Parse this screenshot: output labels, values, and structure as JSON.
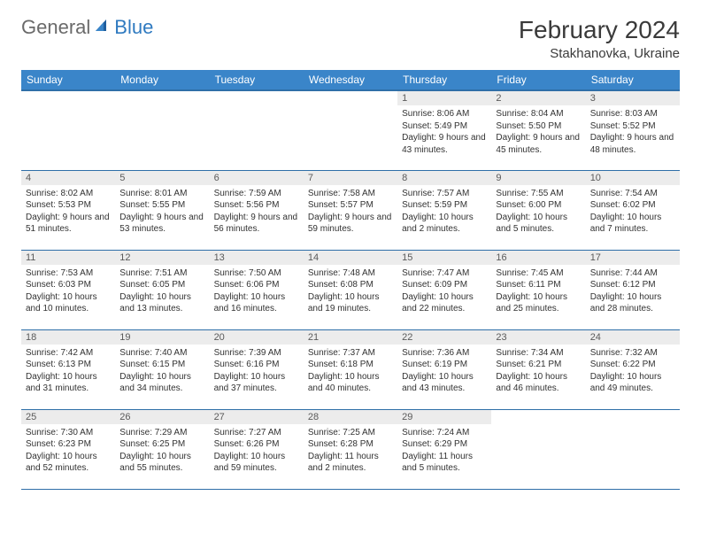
{
  "logo": {
    "general": "General",
    "blue": "Blue"
  },
  "title": "February 2024",
  "location": "Stakhanovka, Ukraine",
  "colors": {
    "header_bg": "#3a85c9",
    "header_border": "#2f6fa8",
    "daynum_bg": "#ececec",
    "text": "#323232",
    "logo_gray": "#6a6a6a",
    "logo_blue": "#2f7ac0"
  },
  "weekdays": [
    "Sunday",
    "Monday",
    "Tuesday",
    "Wednesday",
    "Thursday",
    "Friday",
    "Saturday"
  ],
  "grid": [
    [
      {
        "day": "",
        "sunrise": "",
        "sunset": "",
        "daylight": ""
      },
      {
        "day": "",
        "sunrise": "",
        "sunset": "",
        "daylight": ""
      },
      {
        "day": "",
        "sunrise": "",
        "sunset": "",
        "daylight": ""
      },
      {
        "day": "",
        "sunrise": "",
        "sunset": "",
        "daylight": ""
      },
      {
        "day": "1",
        "sunrise": "Sunrise: 8:06 AM",
        "sunset": "Sunset: 5:49 PM",
        "daylight": "Daylight: 9 hours and 43 minutes."
      },
      {
        "day": "2",
        "sunrise": "Sunrise: 8:04 AM",
        "sunset": "Sunset: 5:50 PM",
        "daylight": "Daylight: 9 hours and 45 minutes."
      },
      {
        "day": "3",
        "sunrise": "Sunrise: 8:03 AM",
        "sunset": "Sunset: 5:52 PM",
        "daylight": "Daylight: 9 hours and 48 minutes."
      }
    ],
    [
      {
        "day": "4",
        "sunrise": "Sunrise: 8:02 AM",
        "sunset": "Sunset: 5:53 PM",
        "daylight": "Daylight: 9 hours and 51 minutes."
      },
      {
        "day": "5",
        "sunrise": "Sunrise: 8:01 AM",
        "sunset": "Sunset: 5:55 PM",
        "daylight": "Daylight: 9 hours and 53 minutes."
      },
      {
        "day": "6",
        "sunrise": "Sunrise: 7:59 AM",
        "sunset": "Sunset: 5:56 PM",
        "daylight": "Daylight: 9 hours and 56 minutes."
      },
      {
        "day": "7",
        "sunrise": "Sunrise: 7:58 AM",
        "sunset": "Sunset: 5:57 PM",
        "daylight": "Daylight: 9 hours and 59 minutes."
      },
      {
        "day": "8",
        "sunrise": "Sunrise: 7:57 AM",
        "sunset": "Sunset: 5:59 PM",
        "daylight": "Daylight: 10 hours and 2 minutes."
      },
      {
        "day": "9",
        "sunrise": "Sunrise: 7:55 AM",
        "sunset": "Sunset: 6:00 PM",
        "daylight": "Daylight: 10 hours and 5 minutes."
      },
      {
        "day": "10",
        "sunrise": "Sunrise: 7:54 AM",
        "sunset": "Sunset: 6:02 PM",
        "daylight": "Daylight: 10 hours and 7 minutes."
      }
    ],
    [
      {
        "day": "11",
        "sunrise": "Sunrise: 7:53 AM",
        "sunset": "Sunset: 6:03 PM",
        "daylight": "Daylight: 10 hours and 10 minutes."
      },
      {
        "day": "12",
        "sunrise": "Sunrise: 7:51 AM",
        "sunset": "Sunset: 6:05 PM",
        "daylight": "Daylight: 10 hours and 13 minutes."
      },
      {
        "day": "13",
        "sunrise": "Sunrise: 7:50 AM",
        "sunset": "Sunset: 6:06 PM",
        "daylight": "Daylight: 10 hours and 16 minutes."
      },
      {
        "day": "14",
        "sunrise": "Sunrise: 7:48 AM",
        "sunset": "Sunset: 6:08 PM",
        "daylight": "Daylight: 10 hours and 19 minutes."
      },
      {
        "day": "15",
        "sunrise": "Sunrise: 7:47 AM",
        "sunset": "Sunset: 6:09 PM",
        "daylight": "Daylight: 10 hours and 22 minutes."
      },
      {
        "day": "16",
        "sunrise": "Sunrise: 7:45 AM",
        "sunset": "Sunset: 6:11 PM",
        "daylight": "Daylight: 10 hours and 25 minutes."
      },
      {
        "day": "17",
        "sunrise": "Sunrise: 7:44 AM",
        "sunset": "Sunset: 6:12 PM",
        "daylight": "Daylight: 10 hours and 28 minutes."
      }
    ],
    [
      {
        "day": "18",
        "sunrise": "Sunrise: 7:42 AM",
        "sunset": "Sunset: 6:13 PM",
        "daylight": "Daylight: 10 hours and 31 minutes."
      },
      {
        "day": "19",
        "sunrise": "Sunrise: 7:40 AM",
        "sunset": "Sunset: 6:15 PM",
        "daylight": "Daylight: 10 hours and 34 minutes."
      },
      {
        "day": "20",
        "sunrise": "Sunrise: 7:39 AM",
        "sunset": "Sunset: 6:16 PM",
        "daylight": "Daylight: 10 hours and 37 minutes."
      },
      {
        "day": "21",
        "sunrise": "Sunrise: 7:37 AM",
        "sunset": "Sunset: 6:18 PM",
        "daylight": "Daylight: 10 hours and 40 minutes."
      },
      {
        "day": "22",
        "sunrise": "Sunrise: 7:36 AM",
        "sunset": "Sunset: 6:19 PM",
        "daylight": "Daylight: 10 hours and 43 minutes."
      },
      {
        "day": "23",
        "sunrise": "Sunrise: 7:34 AM",
        "sunset": "Sunset: 6:21 PM",
        "daylight": "Daylight: 10 hours and 46 minutes."
      },
      {
        "day": "24",
        "sunrise": "Sunrise: 7:32 AM",
        "sunset": "Sunset: 6:22 PM",
        "daylight": "Daylight: 10 hours and 49 minutes."
      }
    ],
    [
      {
        "day": "25",
        "sunrise": "Sunrise: 7:30 AM",
        "sunset": "Sunset: 6:23 PM",
        "daylight": "Daylight: 10 hours and 52 minutes."
      },
      {
        "day": "26",
        "sunrise": "Sunrise: 7:29 AM",
        "sunset": "Sunset: 6:25 PM",
        "daylight": "Daylight: 10 hours and 55 minutes."
      },
      {
        "day": "27",
        "sunrise": "Sunrise: 7:27 AM",
        "sunset": "Sunset: 6:26 PM",
        "daylight": "Daylight: 10 hours and 59 minutes."
      },
      {
        "day": "28",
        "sunrise": "Sunrise: 7:25 AM",
        "sunset": "Sunset: 6:28 PM",
        "daylight": "Daylight: 11 hours and 2 minutes."
      },
      {
        "day": "29",
        "sunrise": "Sunrise: 7:24 AM",
        "sunset": "Sunset: 6:29 PM",
        "daylight": "Daylight: 11 hours and 5 minutes."
      },
      {
        "day": "",
        "sunrise": "",
        "sunset": "",
        "daylight": ""
      },
      {
        "day": "",
        "sunrise": "",
        "sunset": "",
        "daylight": ""
      }
    ]
  ]
}
